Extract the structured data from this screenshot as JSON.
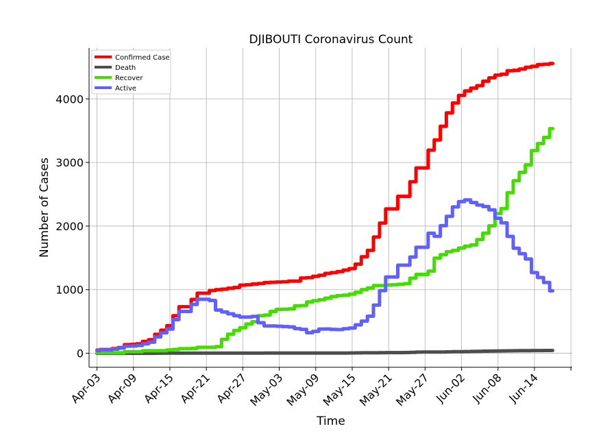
{
  "chart_data": {
    "type": "line",
    "title": "DJIBOUTI Coronavirus Count",
    "xlabel": "Time",
    "ylabel": "Number of Cases",
    "xlim": [
      -1.3,
      78.2
    ],
    "ylim": [
      -220,
      4800
    ],
    "x_ticks": [
      {
        "x": 0,
        "label": "Apr-03"
      },
      {
        "x": 6,
        "label": "Apr-09"
      },
      {
        "x": 12,
        "label": "Apr-15"
      },
      {
        "x": 18,
        "label": "Apr-21"
      },
      {
        "x": 24,
        "label": "Apr-27"
      },
      {
        "x": 30,
        "label": "May-03"
      },
      {
        "x": 36,
        "label": "May-09"
      },
      {
        "x": 42,
        "label": "May-15"
      },
      {
        "x": 48,
        "label": "May-21"
      },
      {
        "x": 54,
        "label": "May-27"
      },
      {
        "x": 60,
        "label": "Jun-02"
      },
      {
        "x": 66,
        "label": "Jun-08"
      },
      {
        "x": 72,
        "label": "Jun-14"
      },
      {
        "x": 78,
        "label": ""
      }
    ],
    "y_ticks": [
      0,
      1000,
      2000,
      3000,
      4000
    ],
    "grid": true,
    "legend_position": "top-left",
    "x_note": "x = days since Apr-03; one value per day",
    "series": [
      {
        "name": "Confirmed Case",
        "color": "#ff0000",
        "values": [
          49,
          59,
          59,
          73,
          90,
          135,
          140,
          150,
          187,
          214,
          298,
          363,
          435,
          591,
          732,
          732,
          846,
          945,
          945,
          986,
          999,
          1008,
          1023,
          1035,
          1072,
          1077,
          1089,
          1097,
          1112,
          1116,
          1120,
          1124,
          1135,
          1135,
          1184,
          1189,
          1210,
          1227,
          1256,
          1268,
          1284,
          1309,
          1331,
          1401,
          1518,
          1618,
          1828,
          2047,
          2270,
          2270,
          2468,
          2468,
          2697,
          2914,
          2914,
          3194,
          3354,
          3569,
          3779,
          3935,
          4054,
          4123,
          4169,
          4207,
          4278,
          4330,
          4373,
          4389,
          4441,
          4449,
          4468,
          4497,
          4512,
          4539,
          4545,
          4557
        ]
      },
      {
        "name": "Death",
        "color": "#4d4d4d",
        "values": [
          0,
          0,
          0,
          0,
          0,
          0,
          0,
          0,
          0,
          0,
          1,
          2,
          2,
          2,
          2,
          2,
          2,
          2,
          2,
          2,
          2,
          2,
          2,
          2,
          2,
          2,
          2,
          2,
          3,
          3,
          3,
          3,
          4,
          4,
          4,
          4,
          4,
          4,
          4,
          4,
          4,
          4,
          5,
          6,
          7,
          7,
          7,
          9,
          10,
          10,
          10,
          12,
          15,
          18,
          20,
          20,
          20,
          20,
          22,
          24,
          25,
          27,
          29,
          31,
          33,
          34,
          35,
          37,
          39,
          40,
          41,
          42,
          43,
          43,
          44,
          44
        ]
      },
      {
        "name": "Recover",
        "color": "#44dd00",
        "values": [
          8,
          8,
          8,
          8,
          8,
          23,
          26,
          26,
          40,
          40,
          40,
          40,
          53,
          60,
          72,
          72,
          76,
          93,
          93,
          93,
          104,
          220,
          300,
          360,
          402,
          460,
          496,
          590,
          600,
          658,
          690,
          692,
          699,
          745,
          750,
          806,
          826,
          841,
          867,
          893,
          907,
          913,
          930,
          960,
          1002,
          1028,
          1064,
          1064,
          1073,
          1077,
          1085,
          1094,
          1180,
          1240,
          1240,
          1290,
          1496,
          1550,
          1596,
          1618,
          1654,
          1685,
          1703,
          1788,
          1888,
          2003,
          2195,
          2275,
          2524,
          2712,
          2845,
          2962,
          3186,
          3297,
          3394,
          3532
        ]
      },
      {
        "name": "Active",
        "color": "#6060ff",
        "values": [
          41,
          51,
          51,
          65,
          82,
          112,
          114,
          124,
          147,
          174,
          257,
          321,
          380,
          529,
          658,
          658,
          768,
          850,
          850,
          830,
          680,
          650,
          620,
          590,
          570,
          570,
          580,
          480,
          430,
          428,
          425,
          420,
          415,
          388,
          376,
          323,
          345,
          380,
          382,
          375,
          373,
          385,
          396,
          447,
          506,
          583,
          757,
          985,
          1200,
          1200,
          1385,
          1385,
          1513,
          1666,
          1666,
          1887,
          1839,
          2006,
          2153,
          2301,
          2384,
          2411,
          2370,
          2331,
          2306,
          2254,
          2123,
          2050,
          1838,
          1651,
          1565,
          1482,
          1268,
          1191,
          1113,
          981
        ]
      }
    ]
  }
}
